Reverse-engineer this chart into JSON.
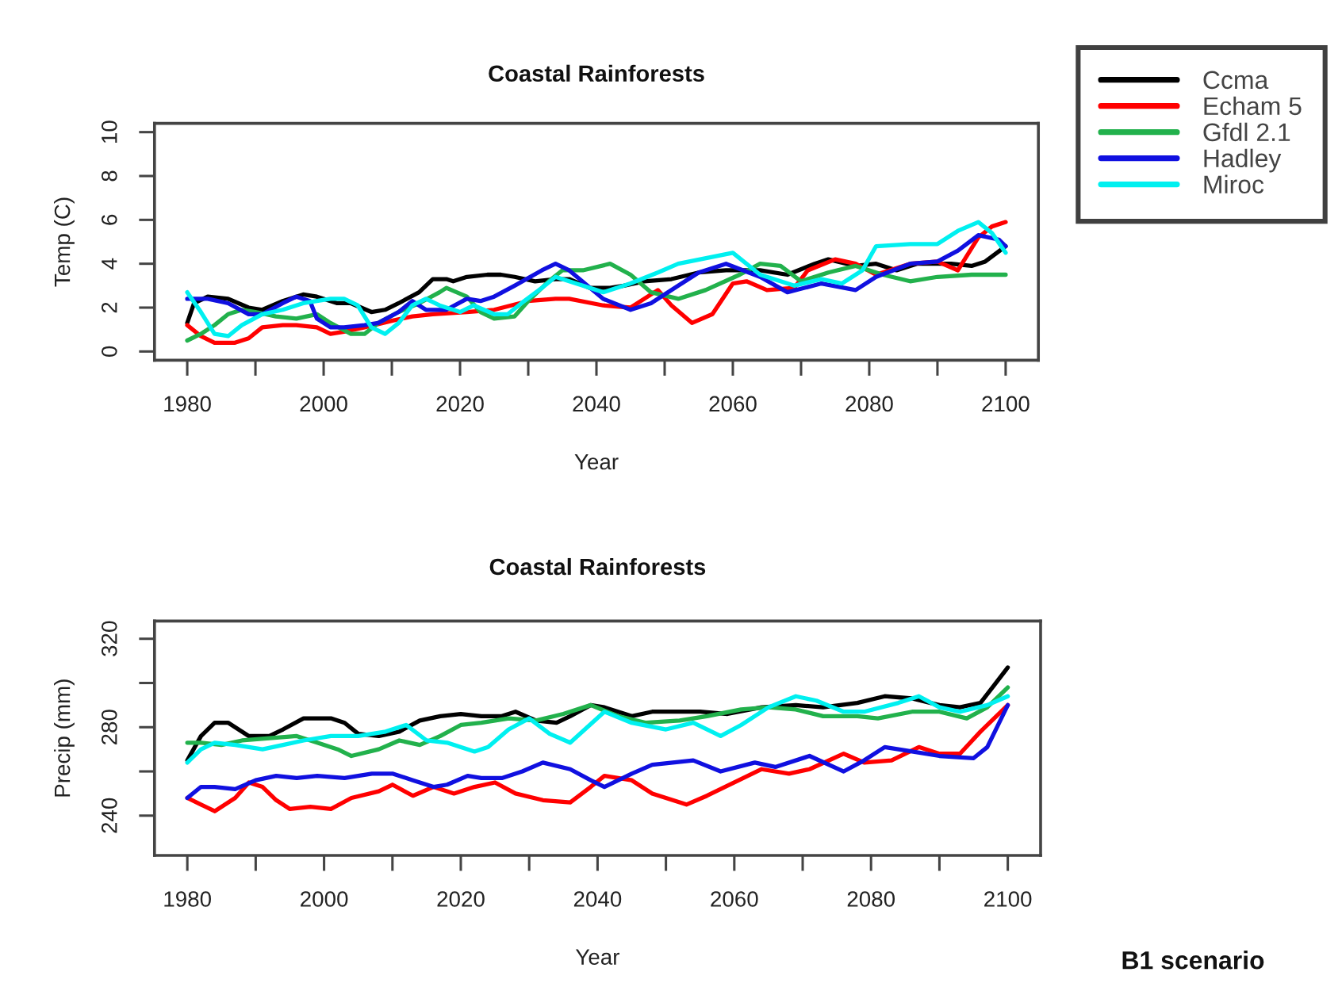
{
  "chart_data": [
    {
      "type": "line",
      "title": "Coastal Rainforests",
      "xlabel": "Year",
      "ylabel": "Temp (C)",
      "xlim": [
        1975.2,
        2104.8
      ],
      "ylim": [
        -0.4,
        10.4
      ],
      "xticks": [
        1980,
        {
          "value": 1990,
          "label": null
        },
        2000,
        {
          "value": 2010,
          "label": null
        },
        2020,
        {
          "value": 2030,
          "label": null
        },
        2040,
        {
          "value": 2050,
          "label": null
        },
        2060,
        {
          "value": 2070,
          "label": null
        },
        2080,
        {
          "value": 2090,
          "label": null
        },
        2100
      ],
      "yticks": [
        0,
        2,
        4,
        6,
        8,
        10
      ],
      "legend": "top right",
      "series": [
        {
          "name": "Ccma",
          "color": "#000000",
          "x": [
            1980,
            1981,
            1983,
            1986,
            1989,
            1991,
            1994,
            1997,
            1999,
            2002,
            2004,
            2007,
            2009,
            2011,
            2014,
            2016,
            2018,
            2019,
            2021,
            2024,
            2026,
            2028,
            2031,
            2034,
            2036,
            2039,
            2042,
            2044,
            2047,
            2051,
            2055,
            2059,
            2064,
            2068,
            2072,
            2074,
            2078,
            2081,
            2084,
            2087,
            2092,
            2095,
            2097,
            2100
          ],
          "values": [
            1.3,
            2.2,
            2.5,
            2.4,
            2.0,
            1.9,
            2.3,
            2.6,
            2.5,
            2.2,
            2.2,
            1.8,
            1.9,
            2.2,
            2.7,
            3.3,
            3.3,
            3.2,
            3.4,
            3.5,
            3.5,
            3.4,
            3.2,
            3.3,
            3.3,
            2.9,
            2.9,
            3.0,
            3.2,
            3.3,
            3.6,
            3.7,
            3.7,
            3.5,
            4.0,
            4.2,
            3.9,
            4.0,
            3.7,
            4.0,
            4.0,
            3.9,
            4.1,
            4.8
          ]
        },
        {
          "name": "Echam 5",
          "color": "#ff0000",
          "x": [
            1980,
            1982,
            1984,
            1987,
            1989,
            1991,
            1994,
            1996,
            1999,
            2001,
            2003,
            2006,
            2010,
            2013,
            2016,
            2021,
            2025,
            2030,
            2034,
            2036,
            2041,
            2045,
            2049,
            2051,
            2054,
            2057,
            2060,
            2062,
            2065,
            2069,
            2071,
            2075,
            2078,
            2081,
            2086,
            2090,
            2093,
            2096,
            2098,
            2100
          ],
          "values": [
            1.2,
            0.7,
            0.4,
            0.4,
            0.6,
            1.1,
            1.2,
            1.2,
            1.1,
            0.8,
            0.9,
            1.1,
            1.4,
            1.6,
            1.7,
            1.8,
            1.9,
            2.3,
            2.4,
            2.4,
            2.1,
            2.0,
            2.8,
            2.1,
            1.3,
            1.7,
            3.1,
            3.2,
            2.8,
            2.9,
            3.7,
            4.2,
            4.0,
            3.5,
            4.0,
            4.1,
            3.7,
            5.2,
            5.7,
            5.9
          ]
        },
        {
          "name": "Gfdl 2.1",
          "color": "#22b14c",
          "x": [
            1980,
            1982,
            1984,
            1986,
            1988,
            1990,
            1993,
            1996,
            1999,
            2001,
            2004,
            2006,
            2008,
            2011,
            2014,
            2017,
            2018,
            2021,
            2023,
            2025,
            2028,
            2030,
            2033,
            2035,
            2038,
            2042,
            2045,
            2048,
            2052,
            2056,
            2061,
            2064,
            2067,
            2070,
            2074,
            2078,
            2082,
            2086,
            2090,
            2095,
            2100
          ],
          "values": [
            0.5,
            0.8,
            1.2,
            1.7,
            1.9,
            1.8,
            1.6,
            1.5,
            1.7,
            1.3,
            0.8,
            0.8,
            1.3,
            1.8,
            2.2,
            2.7,
            2.9,
            2.5,
            1.8,
            1.5,
            1.6,
            2.3,
            3.2,
            3.7,
            3.7,
            4.0,
            3.5,
            2.7,
            2.4,
            2.8,
            3.5,
            4.0,
            3.9,
            3.2,
            3.6,
            3.9,
            3.5,
            3.2,
            3.4,
            3.5,
            3.5
          ]
        },
        {
          "name": "Hadley",
          "color": "#1010e0",
          "x": [
            1980,
            1983,
            1986,
            1989,
            1991,
            1994,
            1996,
            1998,
            1999,
            2001,
            2003,
            2006,
            2008,
            2011,
            2013,
            2015,
            2018,
            2021,
            2023,
            2025,
            2028,
            2032,
            2034,
            2036,
            2041,
            2045,
            2048,
            2052,
            2055,
            2059,
            2064,
            2068,
            2073,
            2078,
            2081,
            2086,
            2090,
            2093,
            2096,
            2099,
            2100
          ],
          "values": [
            2.4,
            2.4,
            2.2,
            1.7,
            1.7,
            2.2,
            2.5,
            2.3,
            1.5,
            1.1,
            1.1,
            1.2,
            1.3,
            1.8,
            2.3,
            1.9,
            1.9,
            2.4,
            2.3,
            2.5,
            3.0,
            3.7,
            4.0,
            3.7,
            2.4,
            1.9,
            2.2,
            3.0,
            3.6,
            4.0,
            3.4,
            2.7,
            3.1,
            2.8,
            3.4,
            4.0,
            4.1,
            4.6,
            5.3,
            5.1,
            4.8
          ]
        },
        {
          "name": "Miroc",
          "color": "#00f0f0",
          "x": [
            1980,
            1982,
            1984,
            1986,
            1988,
            1991,
            1994,
            1997,
            2001,
            2003,
            2005,
            2007,
            2009,
            2011,
            2013,
            2015,
            2017,
            2020,
            2022,
            2025,
            2027,
            2029,
            2032,
            2034,
            2038,
            2041,
            2045,
            2049,
            2052,
            2060,
            2064,
            2069,
            2073,
            2076,
            2079,
            2081,
            2086,
            2090,
            2093,
            2096,
            2098,
            2100
          ],
          "values": [
            2.7,
            1.8,
            0.8,
            0.7,
            1.2,
            1.7,
            1.9,
            2.2,
            2.4,
            2.4,
            2.1,
            1.1,
            0.8,
            1.3,
            2.1,
            2.4,
            2.1,
            1.8,
            2.1,
            1.7,
            1.7,
            2.2,
            2.9,
            3.4,
            3.0,
            2.7,
            3.1,
            3.6,
            4.0,
            4.5,
            3.5,
            3.0,
            3.3,
            3.1,
            3.7,
            4.8,
            4.9,
            4.9,
            5.5,
            5.9,
            5.4,
            4.5
          ]
        }
      ]
    },
    {
      "type": "line",
      "title": "Coastal Rainforests",
      "xlabel": "Year",
      "ylabel": "Precip (mm)",
      "xlim": [
        1975.2,
        2104.8
      ],
      "ylim": [
        222,
        328
      ],
      "xticks": [
        1980,
        {
          "value": 1990,
          "label": null
        },
        2000,
        {
          "value": 2010,
          "label": null
        },
        2020,
        {
          "value": 2030,
          "label": null
        },
        2040,
        {
          "value": 2050,
          "label": null
        },
        2060,
        {
          "value": 2070,
          "label": null
        },
        2080,
        {
          "value": 2090,
          "label": null
        },
        2100
      ],
      "yticks": [
        240,
        {
          "value": 260,
          "label": null
        },
        280,
        {
          "value": 300,
          "label": null
        },
        320
      ],
      "annotations": [
        "B1 scenario"
      ],
      "series": [
        {
          "color": "#000000",
          "x": [
            1980,
            1982,
            1984,
            1986,
            1989,
            1992,
            1994,
            1997,
            2001,
            2003,
            2005,
            2008,
            2011,
            2014,
            2017,
            2020,
            2023,
            2026,
            2028,
            2031,
            2034,
            2036,
            2039,
            2041,
            2045,
            2048,
            2055,
            2059,
            2064,
            2069,
            2073,
            2078,
            2082,
            2086,
            2090,
            2093,
            2096,
            2098,
            2100
          ],
          "values": [
            265,
            276,
            282,
            282,
            276,
            276,
            279,
            284,
            284,
            282,
            277,
            276,
            278,
            283,
            285,
            286,
            285,
            285,
            287,
            283,
            282,
            285,
            290,
            289,
            285,
            287,
            287,
            286,
            289,
            290,
            289,
            291,
            294,
            293,
            290,
            289,
            291,
            299,
            307
          ]
        },
        {
          "color": "#ff0000",
          "x": [
            1980,
            1982,
            1984,
            1987,
            1989,
            1991,
            1993,
            1995,
            1998,
            2001,
            2004,
            2008,
            2010,
            2013,
            2016,
            2019,
            2022,
            2025,
            2028,
            2032,
            2036,
            2039,
            2041,
            2045,
            2048,
            2053,
            2056,
            2060,
            2064,
            2068,
            2071,
            2076,
            2079,
            2083,
            2087,
            2090,
            2093,
            2096,
            2100
          ],
          "values": [
            248,
            245,
            242,
            248,
            255,
            253,
            247,
            243,
            244,
            243,
            248,
            251,
            254,
            249,
            253,
            250,
            253,
            255,
            250,
            247,
            246,
            253,
            258,
            256,
            250,
            245,
            249,
            255,
            261,
            259,
            261,
            268,
            264,
            265,
            271,
            268,
            268,
            278,
            290
          ]
        },
        {
          "color": "#22b14c",
          "x": [
            1980,
            1982,
            1985,
            1988,
            1992,
            1996,
            1999,
            2002,
            2004,
            2008,
            2011,
            2014,
            2017,
            2020,
            2023,
            2027,
            2031,
            2035,
            2039,
            2043,
            2047,
            2052,
            2056,
            2061,
            2065,
            2069,
            2073,
            2078,
            2081,
            2086,
            2090,
            2094,
            2097,
            2100
          ],
          "values": [
            273,
            273,
            272,
            274,
            275,
            276,
            273,
            270,
            267,
            270,
            274,
            272,
            276,
            281,
            282,
            284,
            283,
            286,
            290,
            285,
            282,
            283,
            285,
            288,
            289,
            288,
            285,
            285,
            284,
            287,
            287,
            284,
            289,
            298
          ]
        },
        {
          "color": "#1010e0",
          "x": [
            1980,
            1982,
            1984,
            1987,
            1990,
            1993,
            1996,
            1999,
            2003,
            2007,
            2010,
            2013,
            2016,
            2018,
            2021,
            2023,
            2026,
            2029,
            2032,
            2036,
            2039,
            2041,
            2045,
            2048,
            2054,
            2058,
            2063,
            2066,
            2071,
            2076,
            2079,
            2082,
            2086,
            2090,
            2095,
            2097,
            2100
          ],
          "values": [
            248,
            253,
            253,
            252,
            256,
            258,
            257,
            258,
            257,
            259,
            259,
            256,
            253,
            254,
            258,
            257,
            257,
            260,
            264,
            261,
            256,
            253,
            259,
            263,
            265,
            260,
            264,
            262,
            267,
            260,
            265,
            271,
            269,
            267,
            266,
            271,
            290
          ]
        },
        {
          "color": "#00f0f0",
          "x": [
            1980,
            1982,
            1984,
            1987,
            1991,
            1994,
            1997,
            2001,
            2005,
            2009,
            2012,
            2015,
            2018,
            2022,
            2024,
            2027,
            2030,
            2033,
            2036,
            2041,
            2045,
            2050,
            2054,
            2058,
            2061,
            2065,
            2069,
            2072,
            2076,
            2079,
            2084,
            2087,
            2090,
            2093,
            2097,
            2100
          ],
          "values": [
            264,
            270,
            273,
            272,
            270,
            272,
            274,
            276,
            276,
            278,
            281,
            274,
            273,
            269,
            271,
            279,
            284,
            277,
            273,
            287,
            282,
            279,
            282,
            276,
            281,
            289,
            294,
            292,
            287,
            287,
            291,
            294,
            289,
            287,
            290,
            294
          ]
        }
      ]
    }
  ]
}
